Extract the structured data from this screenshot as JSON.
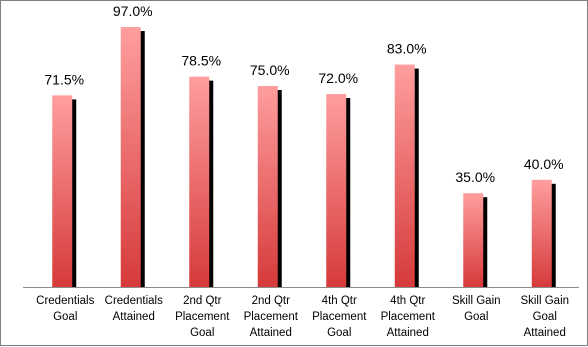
{
  "chart_data": {
    "type": "bar",
    "title": "",
    "xlabel": "",
    "ylabel": "",
    "ylim": [
      0,
      100
    ],
    "grid": false,
    "legend": "none",
    "categories": [
      [
        "Credentials",
        "Goal"
      ],
      [
        "Credentials",
        "Attained"
      ],
      [
        "2nd Qtr",
        "Placement",
        "Goal"
      ],
      [
        "2nd Qtr",
        "Placement",
        "Attained"
      ],
      [
        "4th Qtr",
        "Placement",
        "Goal"
      ],
      [
        "4th Qtr",
        "Placement",
        "Attained"
      ],
      [
        "Skill Gain",
        "Goal"
      ],
      [
        "Skill Gain",
        "Goal",
        "Attained"
      ]
    ],
    "values": [
      71.5,
      97.0,
      78.5,
      75.0,
      72.0,
      83.0,
      35.0,
      40.0
    ],
    "data_labels": [
      "71.5%",
      "97.0%",
      "78.5%",
      "75.0%",
      "72.0%",
      "83.0%",
      "35.0%",
      "40.0%"
    ],
    "colors": {
      "bar_top": "#ff9e9e",
      "bar_bottom": "#d63a3a",
      "bar_shadow": "#000000",
      "axis": "#8c8c8c"
    }
  }
}
